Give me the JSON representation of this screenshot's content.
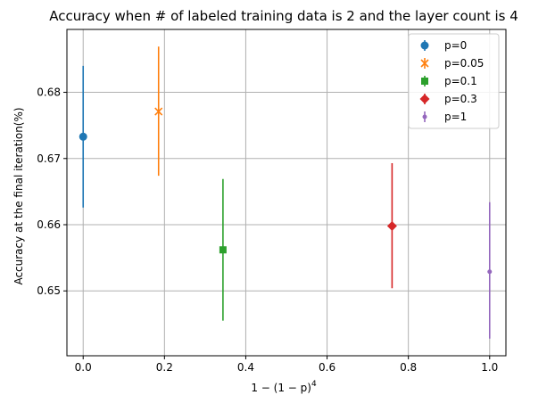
{
  "chart_data": {
    "type": "scatter",
    "title": "Accuracy when # of labeled training data is 2 and the layer count is 4",
    "xlabel": "1 − (1 − p)",
    "xlabel_superscript": "4",
    "ylabel": "Accuracy at the final iteration(%)",
    "xlim": [
      -0.04,
      1.04
    ],
    "ylim": [
      0.6402,
      0.6895
    ],
    "xticks": [
      0.0,
      0.2,
      0.4,
      0.6,
      0.8,
      1.0
    ],
    "xtick_labels": [
      "0.0",
      "0.2",
      "0.4",
      "0.6",
      "0.8",
      "1.0"
    ],
    "yticks": [
      0.65,
      0.66,
      0.67,
      0.68
    ],
    "ytick_labels": [
      "0.65",
      "0.66",
      "0.67",
      "0.68"
    ],
    "grid": true,
    "legend_position": "top-right",
    "series": [
      {
        "name": "p=0",
        "color": "#1f77b4",
        "marker": "circle",
        "x": 0.0,
        "y": 0.6733,
        "err_low": 0.6626,
        "err_high": 0.684
      },
      {
        "name": "p=0.05",
        "color": "#ff7f0e",
        "marker": "x",
        "x": 0.1855,
        "y": 0.6771,
        "err_low": 0.6674,
        "err_high": 0.6869
      },
      {
        "name": "p=0.1",
        "color": "#2ca02c",
        "marker": "square",
        "x": 0.3439,
        "y": 0.6562,
        "err_low": 0.6455,
        "err_high": 0.6669
      },
      {
        "name": "p=0.3",
        "color": "#d62728",
        "marker": "diamond",
        "x": 0.7599,
        "y": 0.6598,
        "err_low": 0.6504,
        "err_high": 0.6693
      },
      {
        "name": "p=1",
        "color": "#9467bd",
        "marker": "point",
        "x": 1.0,
        "y": 0.6529,
        "err_low": 0.6428,
        "err_high": 0.6634
      }
    ]
  }
}
